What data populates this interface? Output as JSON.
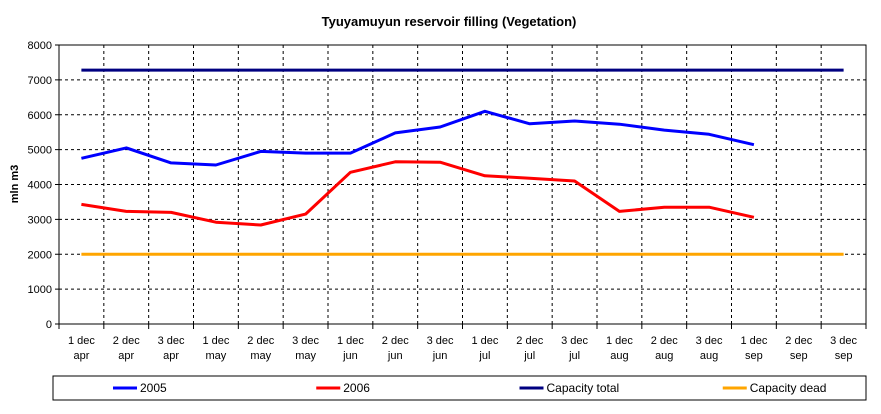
{
  "chart_data": {
    "type": "line",
    "title": "Tyuyamuyun reservoir filling (Vegetation)",
    "ylabel": "mln m3",
    "xlabel": "",
    "ylim": [
      0,
      8000
    ],
    "yticks": [
      0,
      1000,
      2000,
      3000,
      4000,
      5000,
      6000,
      7000,
      8000
    ],
    "grid": true,
    "legend_position": "bottom",
    "categories": [
      [
        "1 dec",
        "apr"
      ],
      [
        "2 dec",
        "apr"
      ],
      [
        "3 dec",
        "apr"
      ],
      [
        "1 dec",
        "may"
      ],
      [
        "2 dec",
        "may"
      ],
      [
        "3 dec",
        "may"
      ],
      [
        "1 dec",
        "jun"
      ],
      [
        "2 dec",
        "jun"
      ],
      [
        "3 dec",
        "jun"
      ],
      [
        "1 dec",
        "jul"
      ],
      [
        "2 dec",
        "jul"
      ],
      [
        "3 dec",
        "jul"
      ],
      [
        "1 dec",
        "aug"
      ],
      [
        "2 dec",
        "aug"
      ],
      [
        "3 dec",
        "aug"
      ],
      [
        "1 dec",
        "sep"
      ],
      [
        "2 dec",
        "sep"
      ],
      [
        "3 dec",
        "sep"
      ]
    ],
    "series": [
      {
        "name": "2005",
        "color": "#0000ff",
        "values": [
          4750,
          5050,
          4620,
          4560,
          4950,
          4900,
          4900,
          5480,
          5650,
          6100,
          5740,
          5820,
          5730,
          5560,
          5440,
          5140,
          null,
          null
        ]
      },
      {
        "name": "2006",
        "color": "#ff0000",
        "values": [
          3430,
          3230,
          3200,
          2920,
          2840,
          3150,
          4350,
          4650,
          4640,
          4250,
          4180,
          4100,
          3230,
          3350,
          3350,
          3060,
          null,
          null
        ]
      },
      {
        "name": "Capacity total",
        "color": "#000080",
        "values": [
          7280,
          7280,
          7280,
          7280,
          7280,
          7280,
          7280,
          7280,
          7280,
          7280,
          7280,
          7280,
          7280,
          7280,
          7280,
          7280,
          7280,
          7280
        ]
      },
      {
        "name": "Capacity dead",
        "color": "#ffa500",
        "values": [
          2000,
          2000,
          2000,
          2000,
          2000,
          2000,
          2000,
          2000,
          2000,
          2000,
          2000,
          2000,
          2000,
          2000,
          2000,
          2000,
          2000,
          2000
        ]
      }
    ]
  }
}
